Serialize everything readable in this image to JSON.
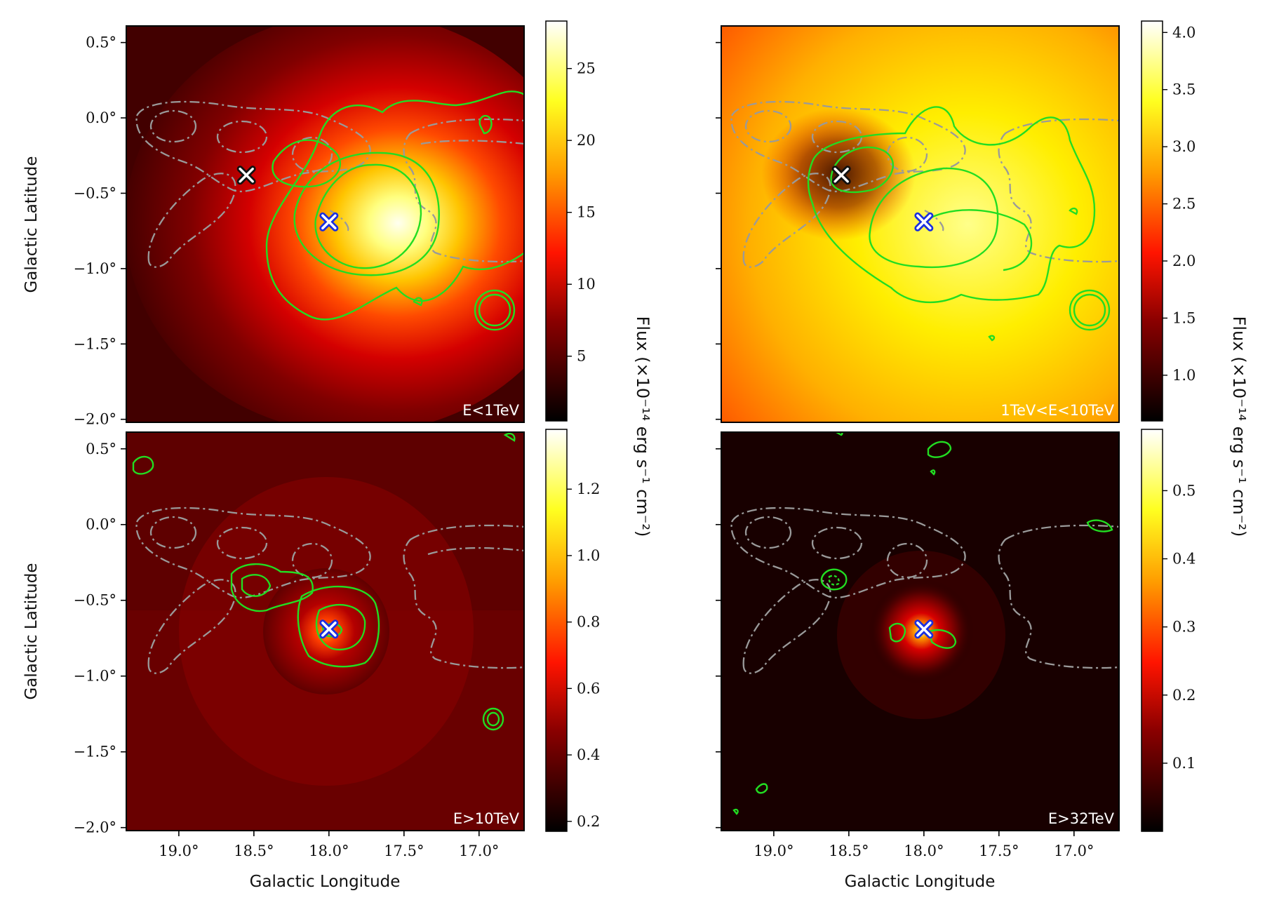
{
  "chart_data": [
    {
      "type": "heatmap",
      "band_label": "E<1TeV",
      "xlabel": "",
      "ylabel": "Galactic Latitude",
      "xlim": [
        19.35,
        16.7
      ],
      "ylim": [
        -2.02,
        0.61
      ],
      "peak": {
        "l": 17.7,
        "b": -0.72
      },
      "sources": [
        {
          "marker": "x",
          "color": "#111111",
          "l": 18.55,
          "b": -0.38
        },
        {
          "marker": "x",
          "color": "#1a2fe0",
          "l": 18.0,
          "b": -0.69
        }
      ],
      "colorbar": {
        "ticks": [
          5,
          10,
          15,
          20,
          25
        ],
        "range": [
          0.5,
          28.3
        ]
      }
    },
    {
      "type": "heatmap",
      "band_label": "1TeV<E<10TeV",
      "xlabel": "",
      "ylabel": "",
      "xlim": [
        19.35,
        16.7
      ],
      "ylim": [
        -2.02,
        0.61
      ],
      "peak": {
        "l": 17.6,
        "b": -0.75
      },
      "sources": [
        {
          "marker": "x",
          "color": "#111111",
          "l": 18.55,
          "b": -0.38
        },
        {
          "marker": "x",
          "color": "#1a2fe0",
          "l": 18.0,
          "b": -0.69
        }
      ],
      "colorbar": {
        "ticks": [
          1.0,
          1.5,
          2.0,
          2.5,
          3.0,
          3.5,
          4.0
        ],
        "range": [
          0.6,
          4.1
        ]
      }
    },
    {
      "type": "heatmap",
      "band_label": "E>10TeV",
      "xlabel": "Galactic Longitude",
      "ylabel": "Galactic Latitude",
      "xlim": [
        19.35,
        16.7
      ],
      "ylim": [
        -2.02,
        0.61
      ],
      "peak": {
        "l": 18.0,
        "b": -0.72
      },
      "sources": [
        {
          "marker": "x",
          "color": "#1a2fe0",
          "l": 18.0,
          "b": -0.69
        }
      ],
      "colorbar": {
        "ticks": [
          0.2,
          0.4,
          0.6,
          0.8,
          1.0,
          1.2
        ],
        "range": [
          0.17,
          1.38
        ]
      }
    },
    {
      "type": "heatmap",
      "band_label": "E>32TeV",
      "xlabel": "Galactic Longitude",
      "ylabel": "",
      "xlim": [
        19.35,
        16.7
      ],
      "ylim": [
        -2.02,
        0.61
      ],
      "peak": {
        "l": 18.0,
        "b": -0.72
      },
      "sources": [
        {
          "marker": "x",
          "color": "#1a2fe0",
          "l": 18.0,
          "b": -0.69
        }
      ],
      "colorbar": {
        "ticks": [
          0.1,
          0.2,
          0.3,
          0.4,
          0.5
        ],
        "range": [
          0.0,
          0.59
        ]
      }
    }
  ],
  "axes": {
    "x_ticks": [
      "19.0°",
      "18.5°",
      "18.0°",
      "17.5°",
      "17.0°"
    ],
    "x_tick_values": [
      19.0,
      18.5,
      18.0,
      17.5,
      17.0
    ],
    "y_ticks": [
      "0.5°",
      "0.0°",
      "−0.5°",
      "−1.0°",
      "−1.5°",
      "−2.0°"
    ],
    "y_tick_values": [
      0.5,
      0.0,
      -0.5,
      -1.0,
      -1.5,
      -2.0
    ]
  },
  "colorbar_label": "Flux (×10⁻¹⁴ erg s⁻¹ cm⁻²)",
  "colors": {
    "contour_green": "#22dd22",
    "contour_gray": "#999999"
  }
}
